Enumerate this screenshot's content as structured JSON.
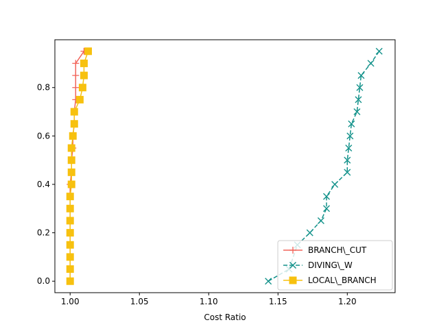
{
  "chart_data": {
    "type": "line",
    "title": "",
    "xlabel": "Cost Ratio",
    "ylabel": "",
    "xlim": [
      0.989,
      1.2345
    ],
    "ylim": [
      -0.0475,
      0.9975
    ],
    "xticks": [
      1.0,
      1.05,
      1.1,
      1.15,
      1.2
    ],
    "xtick_labels": [
      "1.00",
      "1.05",
      "1.10",
      "1.15",
      "1.20"
    ],
    "yticks": [
      0.0,
      0.2,
      0.4,
      0.6,
      0.8
    ],
    "ytick_labels": [
      "0.0",
      "0.2",
      "0.4",
      "0.6",
      "0.8"
    ],
    "grid": false,
    "legend_position": "lower-right",
    "series": [
      {
        "name": "BRANCH\\_CUT",
        "color": "#f2645a",
        "marker": "plus",
        "linestyle": "solid",
        "x": [
          1.0,
          1.0,
          1.0,
          1.0,
          1.0,
          1.0,
          1.0,
          1.0,
          1.0,
          1.001,
          1.001,
          1.002,
          1.002,
          1.003,
          1.003,
          1.004,
          1.004,
          1.004,
          1.004,
          1.01
        ],
        "y": [
          0.0,
          0.05,
          0.1,
          0.15,
          0.2,
          0.25,
          0.3,
          0.35,
          0.4,
          0.45,
          0.5,
          0.55,
          0.6,
          0.65,
          0.7,
          0.75,
          0.8,
          0.85,
          0.9,
          0.95
        ]
      },
      {
        "name": "DIVING\\_W",
        "color": "#12918a",
        "marker": "x",
        "linestyle": "dashed",
        "x": [
          1.143,
          1.158,
          1.164,
          1.173,
          1.181,
          1.185,
          1.185,
          1.191,
          1.2,
          1.2,
          1.201,
          1.202,
          1.203,
          1.207,
          1.208,
          1.209,
          1.21,
          1.217,
          1.223
        ],
        "y": [
          0.0,
          0.05,
          0.15,
          0.2,
          0.25,
          0.3,
          0.35,
          0.4,
          0.45,
          0.5,
          0.55,
          0.6,
          0.65,
          0.7,
          0.75,
          0.8,
          0.85,
          0.9,
          0.95
        ]
      },
      {
        "name": "LOCAL\\_BRANCH",
        "color": "#f7c10f",
        "marker": "square",
        "linestyle": "solid",
        "x": [
          1.0,
          1.0,
          1.0,
          1.0,
          1.0,
          1.0,
          1.0,
          1.0,
          1.001,
          1.001,
          1.001,
          1.001,
          1.002,
          1.003,
          1.003,
          1.007,
          1.009,
          1.01,
          1.01,
          1.013
        ],
        "y": [
          0.0,
          0.05,
          0.1,
          0.15,
          0.2,
          0.25,
          0.3,
          0.35,
          0.4,
          0.45,
          0.5,
          0.55,
          0.6,
          0.65,
          0.7,
          0.75,
          0.8,
          0.85,
          0.9,
          0.95
        ]
      }
    ]
  }
}
